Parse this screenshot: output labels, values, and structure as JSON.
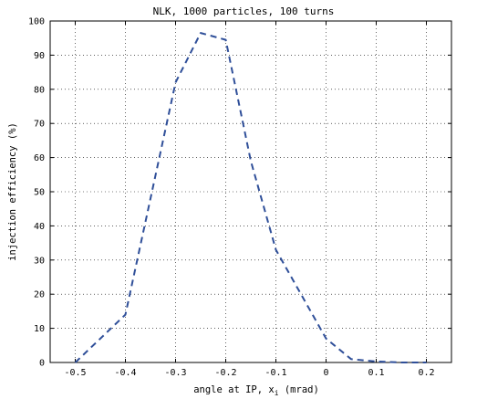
{
  "chart_data": {
    "type": "line",
    "title": "NLK, 1000 particles, 100 turns",
    "xlabel": "angle at IP, x",
    "xlabel_sub": "i",
    "xlabel_suffix": " (mrad)",
    "ylabel": "injection efficiency (%)",
    "xlim": [
      -0.55,
      0.25
    ],
    "ylim": [
      0,
      100
    ],
    "xticks": [
      -0.5,
      -0.4,
      -0.3,
      -0.2,
      -0.1,
      0,
      0.1,
      0.2
    ],
    "xtick_labels": [
      "-0.5",
      "-0.4",
      "-0.3",
      "-0.2",
      "-0.1",
      "0",
      "0.1",
      "0.2"
    ],
    "yticks": [
      0,
      10,
      20,
      30,
      40,
      50,
      60,
      70,
      80,
      90,
      100
    ],
    "ytick_labels": [
      "0",
      "10",
      "20",
      "30",
      "40",
      "50",
      "60",
      "70",
      "80",
      "90",
      "100"
    ],
    "grid": true,
    "series": [
      {
        "color": "#2f4f99",
        "line_style": "dashed",
        "x": [
          -0.5,
          -0.4,
          -0.3,
          -0.25,
          -0.2,
          -0.15,
          -0.1,
          0,
          0.05,
          0.1,
          0.15,
          0.2
        ],
        "y": [
          0,
          14,
          82,
          96.5,
          94.5,
          59,
          33,
          7,
          1,
          0.3,
          0,
          0
        ]
      }
    ]
  }
}
